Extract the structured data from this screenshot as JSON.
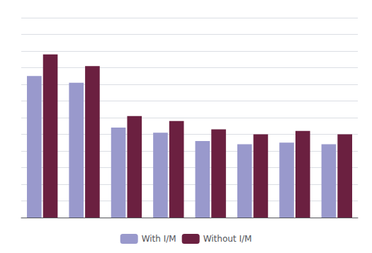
{
  "chart_data": {
    "type": "bar",
    "categories": [
      null,
      null,
      null,
      null,
      null,
      null,
      null,
      null
    ],
    "series": [
      {
        "name": "With I/M",
        "color": "#9999cc",
        "values": [
          8.5,
          8.1,
          5.4,
          5.1,
          4.6,
          4.4,
          4.5,
          4.4
        ]
      },
      {
        "name": "Without I/M",
        "color": "#6b2040",
        "values": [
          9.8,
          9.1,
          6.1,
          5.8,
          5.3,
          5.0,
          5.2,
          5.0
        ]
      }
    ],
    "ylim": [
      0,
      12
    ],
    "yticks": [
      0,
      1,
      2,
      3,
      4,
      5,
      6,
      7,
      8,
      9,
      10,
      11,
      12
    ],
    "grid": true,
    "legend": "bottom",
    "tick_labels": false
  }
}
